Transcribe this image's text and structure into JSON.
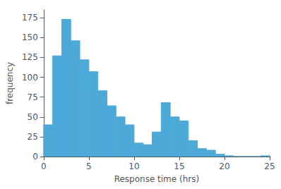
{
  "chart_data": {
    "type": "histogram",
    "xlabel": "Response time (hrs)",
    "ylabel": "frequency",
    "bins": [
      0,
      1,
      2,
      3,
      4,
      5,
      6,
      7,
      8,
      9,
      10,
      11,
      12,
      13,
      14,
      15,
      16,
      17,
      18,
      19,
      20,
      21,
      22,
      23,
      24,
      25
    ],
    "values": [
      40,
      127,
      173,
      146,
      122,
      107,
      83,
      64,
      50,
      40,
      17,
      15,
      31,
      68,
      50,
      45,
      20,
      10,
      8,
      3,
      1,
      0,
      0,
      0,
      1
    ],
    "color": "#4da9d8",
    "xlim": [
      0,
      25
    ],
    "ylim": [
      0,
      185
    ],
    "xticks": [
      0,
      5,
      10,
      15,
      20,
      25
    ],
    "yticks": [
      0,
      25,
      50,
      75,
      100,
      125,
      150,
      175
    ],
    "grid": false
  }
}
